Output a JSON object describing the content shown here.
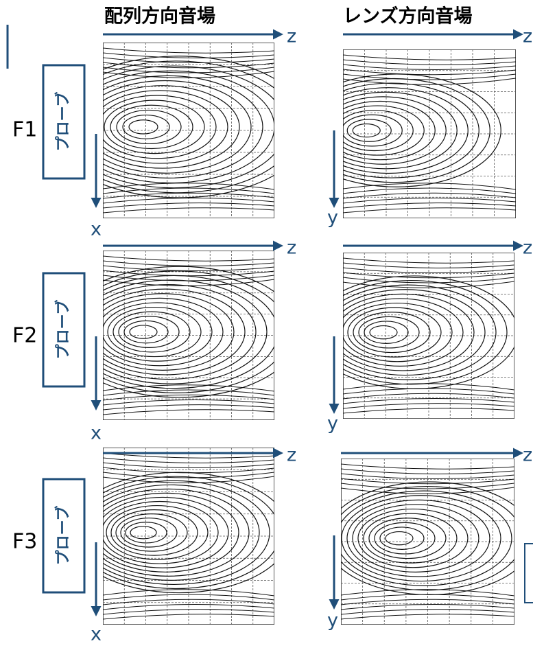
{
  "headers": [
    "配列方向音場",
    "レンズ方向音場"
  ],
  "rows": [
    {
      "label": "F1",
      "probe": "プローブ",
      "array_axes": {
        "horizontal": "z",
        "vertical": "x"
      },
      "lens_axes": {
        "horizontal": "z",
        "vertical": "y"
      }
    },
    {
      "label": "F2",
      "probe": "プローブ",
      "array_axes": {
        "horizontal": "z",
        "vertical": "x"
      },
      "lens_axes": {
        "horizontal": "z",
        "vertical": "y"
      }
    },
    {
      "label": "F3",
      "probe": "プローブ",
      "array_axes": {
        "horizontal": "z",
        "vertical": "x"
      },
      "lens_axes": {
        "horizontal": "z",
        "vertical": "y"
      }
    }
  ]
}
